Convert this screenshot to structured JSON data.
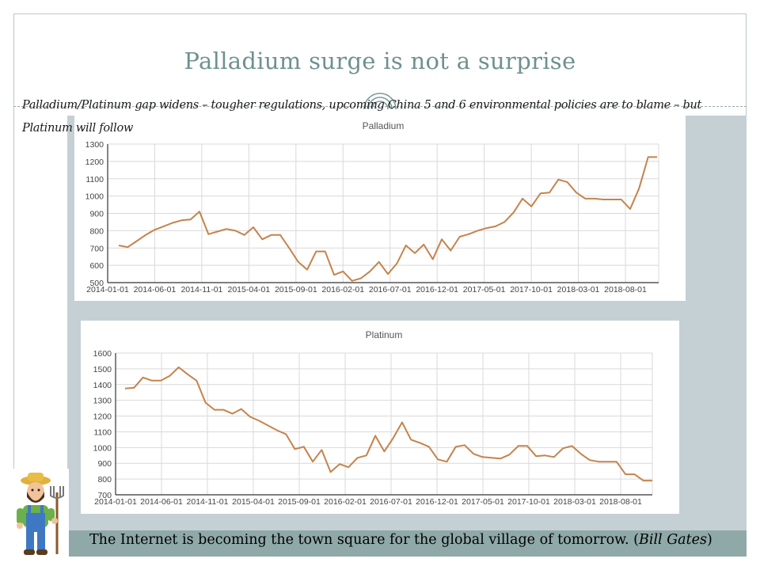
{
  "slide": {
    "title": "Palladium surge is not a surprise",
    "subtitle": "Palladium/Platinum gap widens – tougher regulations, upcoming China 5 and 6 environmental policies are to blame – but Platinum will follow",
    "quote_text": "The Internet is becoming the town square for the global village of tomorrow. (",
    "quote_author": "Bill Gates",
    "quote_close": ")"
  },
  "colors": {
    "line": "#c5834c",
    "grid": "#d9d9d9",
    "axis": "#333333",
    "panel": "#c5d0d5",
    "quote_bar": "#8fa9a8",
    "title": "#6f9190"
  },
  "chart_data": [
    {
      "type": "line",
      "title": "Palladium",
      "xlabel": "",
      "ylabel": "",
      "ylim": [
        500,
        1300
      ],
      "yticks": [
        1300,
        1200,
        1100,
        1000,
        900,
        800,
        700,
        600,
        500
      ],
      "xticks": [
        "2014-01-01",
        "2014-06-01",
        "2014-11-01",
        "2015-04-01",
        "2015-09-01",
        "2016-02-01",
        "2016-07-01",
        "2016-12-01",
        "2017-05-01",
        "2017-10-01",
        "2018-03-01",
        "2018-08-01"
      ],
      "grid": true,
      "series": [
        {
          "values": [
            715,
            705,
            740,
            775,
            805,
            825,
            845,
            860,
            865,
            910,
            780,
            795,
            810,
            800,
            775,
            820,
            750,
            775,
            775,
            700,
            620,
            575,
            680,
            680,
            545,
            565,
            510,
            525,
            565,
            620,
            550,
            610,
            715,
            670,
            720,
            635,
            750,
            685,
            765,
            780,
            800,
            815,
            825,
            850,
            905,
            985,
            940,
            1015,
            1020,
            1095,
            1080,
            1020,
            985,
            985,
            980,
            980,
            980,
            925,
            1045,
            1225,
            1225
          ]
        }
      ]
    },
    {
      "type": "line",
      "title": "Platinum",
      "xlabel": "",
      "ylabel": "",
      "ylim": [
        700,
        1600
      ],
      "yticks": [
        1600,
        1500,
        1400,
        1300,
        1200,
        1100,
        1000,
        900,
        800,
        700
      ],
      "xticks": [
        "2014-01-01",
        "2014-06-01",
        "2014-11-01",
        "2015-04-01",
        "2015-09-01",
        "2016-02-01",
        "2016-07-01",
        "2016-12-01",
        "2017-05-01",
        "2017-10-01",
        "2018-03-01",
        "2018-08-01"
      ],
      "grid": true,
      "series": [
        {
          "values": [
            1375,
            1380,
            1445,
            1425,
            1425,
            1455,
            1510,
            1465,
            1425,
            1285,
            1240,
            1240,
            1215,
            1245,
            1195,
            1170,
            1140,
            1110,
            1085,
            990,
            1005,
            910,
            985,
            845,
            895,
            875,
            935,
            950,
            1075,
            975,
            1060,
            1160,
            1050,
            1030,
            1005,
            925,
            910,
            1005,
            1015,
            960,
            940,
            935,
            930,
            955,
            1010,
            1010,
            945,
            950,
            940,
            995,
            1010,
            960,
            920,
            910,
            910,
            910,
            830,
            830,
            790,
            790
          ]
        }
      ]
    }
  ]
}
